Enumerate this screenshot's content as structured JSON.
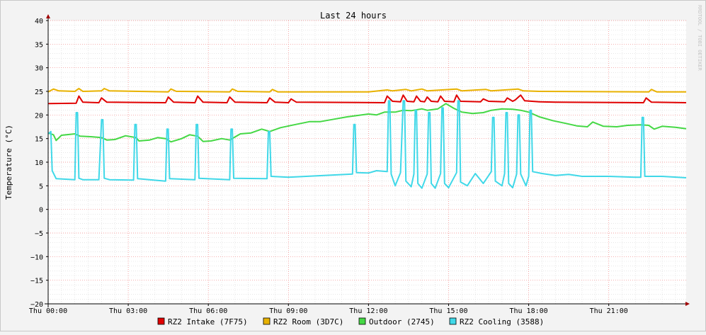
{
  "chart_data": {
    "type": "line",
    "title": "Last 24 hours",
    "ylabel": "Temperature (°C)",
    "xlabel": "",
    "watermark": "RRDTOOL / TOBI OETIKER",
    "ylim": [
      -20,
      40
    ],
    "yticks": [
      40,
      35,
      30,
      25,
      20,
      15,
      10,
      5,
      0,
      -5,
      -10,
      -15,
      -20
    ],
    "xlim_hours": [
      0,
      23.9
    ],
    "xticks": [
      {
        "hour": 0,
        "label": "Thu 00:00"
      },
      {
        "hour": 3,
        "label": "Thu 03:00"
      },
      {
        "hour": 6,
        "label": "Thu 06:00"
      },
      {
        "hour": 9,
        "label": "Thu 09:00"
      },
      {
        "hour": 12,
        "label": "Thu 12:00"
      },
      {
        "hour": 15,
        "label": "Thu 15:00"
      },
      {
        "hour": 18,
        "label": "Thu 18:00"
      },
      {
        "hour": 21,
        "label": "Thu 21:00"
      }
    ],
    "grid": true,
    "legend_position": "bottom",
    "series": [
      {
        "name": "RZ2 Intake (7F75)",
        "color": "#e00000",
        "points": [
          [
            0,
            22.4
          ],
          [
            1.05,
            22.5
          ],
          [
            1.15,
            24.0
          ],
          [
            1.3,
            22.7
          ],
          [
            1.9,
            22.6
          ],
          [
            2.0,
            23.6
          ],
          [
            2.2,
            22.7
          ],
          [
            4.4,
            22.6
          ],
          [
            4.5,
            23.8
          ],
          [
            4.7,
            22.7
          ],
          [
            5.5,
            22.6
          ],
          [
            5.6,
            24.0
          ],
          [
            5.8,
            22.7
          ],
          [
            6.7,
            22.6
          ],
          [
            6.8,
            23.8
          ],
          [
            7.0,
            22.7
          ],
          [
            8.2,
            22.6
          ],
          [
            8.3,
            23.6
          ],
          [
            8.5,
            22.7
          ],
          [
            9.0,
            22.6
          ],
          [
            9.1,
            23.4
          ],
          [
            9.3,
            22.7
          ],
          [
            12.6,
            22.6
          ],
          [
            12.7,
            24.0
          ],
          [
            12.9,
            22.9
          ],
          [
            13.2,
            22.8
          ],
          [
            13.3,
            24.2
          ],
          [
            13.45,
            22.9
          ],
          [
            13.7,
            22.8
          ],
          [
            13.8,
            24.0
          ],
          [
            13.95,
            22.9
          ],
          [
            14.1,
            22.8
          ],
          [
            14.2,
            23.8
          ],
          [
            14.35,
            22.9
          ],
          [
            14.6,
            22.8
          ],
          [
            14.7,
            24.0
          ],
          [
            14.85,
            22.9
          ],
          [
            15.2,
            22.8
          ],
          [
            15.3,
            24.2
          ],
          [
            15.45,
            22.9
          ],
          [
            16.2,
            22.8
          ],
          [
            16.3,
            23.4
          ],
          [
            16.5,
            22.9
          ],
          [
            17.1,
            22.8
          ],
          [
            17.2,
            23.6
          ],
          [
            17.4,
            22.9
          ],
          [
            17.5,
            23.2
          ],
          [
            17.7,
            24.2
          ],
          [
            17.85,
            23.0
          ],
          [
            18.4,
            22.8
          ],
          [
            19.0,
            22.7
          ],
          [
            22.3,
            22.6
          ],
          [
            22.4,
            23.6
          ],
          [
            22.6,
            22.7
          ],
          [
            23.9,
            22.6
          ]
        ]
      },
      {
        "name": "RZ2 Room (3D7C)",
        "color": "#e8b200",
        "points": [
          [
            0,
            24.9
          ],
          [
            0.2,
            25.5
          ],
          [
            0.4,
            25.1
          ],
          [
            1.0,
            25.0
          ],
          [
            1.15,
            25.6
          ],
          [
            1.3,
            25.0
          ],
          [
            2.0,
            25.1
          ],
          [
            2.1,
            25.6
          ],
          [
            2.3,
            25.1
          ],
          [
            4.5,
            24.9
          ],
          [
            4.6,
            25.5
          ],
          [
            4.8,
            25.0
          ],
          [
            6.8,
            24.9
          ],
          [
            6.9,
            25.5
          ],
          [
            7.1,
            25.0
          ],
          [
            8.3,
            24.9
          ],
          [
            8.4,
            25.4
          ],
          [
            8.6,
            24.9
          ],
          [
            12.0,
            24.9
          ],
          [
            12.7,
            25.3
          ],
          [
            12.9,
            25.1
          ],
          [
            13.4,
            25.4
          ],
          [
            13.6,
            25.1
          ],
          [
            14.0,
            25.5
          ],
          [
            14.2,
            25.1
          ],
          [
            15.3,
            25.5
          ],
          [
            15.5,
            25.1
          ],
          [
            16.4,
            25.4
          ],
          [
            16.6,
            25.1
          ],
          [
            17.6,
            25.5
          ],
          [
            17.8,
            25.1
          ],
          [
            18.4,
            25.0
          ],
          [
            22.5,
            24.9
          ],
          [
            22.6,
            25.4
          ],
          [
            22.8,
            24.9
          ],
          [
            23.9,
            24.9
          ]
        ]
      },
      {
        "name": "Outdoor (2745)",
        "color": "#45d845",
        "points": [
          [
            0,
            16.2
          ],
          [
            0.2,
            15.8
          ],
          [
            0.3,
            14.6
          ],
          [
            0.5,
            15.7
          ],
          [
            1.0,
            16.0
          ],
          [
            1.2,
            15.5
          ],
          [
            1.6,
            15.4
          ],
          [
            2.0,
            15.2
          ],
          [
            2.2,
            14.7
          ],
          [
            2.5,
            14.8
          ],
          [
            2.9,
            15.6
          ],
          [
            3.3,
            15.2
          ],
          [
            3.4,
            14.5
          ],
          [
            3.8,
            14.7
          ],
          [
            4.1,
            15.2
          ],
          [
            4.4,
            15.0
          ],
          [
            4.6,
            14.3
          ],
          [
            5.0,
            15.0
          ],
          [
            5.3,
            15.8
          ],
          [
            5.6,
            15.5
          ],
          [
            5.8,
            14.4
          ],
          [
            6.1,
            14.5
          ],
          [
            6.5,
            15.0
          ],
          [
            6.8,
            14.7
          ],
          [
            7.2,
            16.0
          ],
          [
            7.6,
            16.2
          ],
          [
            8.0,
            17.0
          ],
          [
            8.3,
            16.5
          ],
          [
            8.7,
            17.3
          ],
          [
            9.2,
            17.9
          ],
          [
            9.8,
            18.6
          ],
          [
            10.2,
            18.6
          ],
          [
            10.8,
            19.2
          ],
          [
            11.2,
            19.6
          ],
          [
            11.6,
            19.9
          ],
          [
            12.0,
            20.2
          ],
          [
            12.3,
            20.0
          ],
          [
            12.6,
            20.6
          ],
          [
            13.0,
            20.6
          ],
          [
            13.3,
            21.0
          ],
          [
            13.6,
            20.9
          ],
          [
            14.0,
            21.3
          ],
          [
            14.2,
            21.0
          ],
          [
            14.6,
            21.3
          ],
          [
            14.9,
            22.4
          ],
          [
            15.2,
            21.4
          ],
          [
            15.5,
            20.6
          ],
          [
            15.9,
            20.3
          ],
          [
            16.3,
            20.5
          ],
          [
            16.6,
            21.0
          ],
          [
            17.0,
            21.3
          ],
          [
            17.4,
            21.2
          ],
          [
            17.7,
            21.0
          ],
          [
            18.0,
            20.6
          ],
          [
            18.4,
            19.6
          ],
          [
            18.9,
            18.8
          ],
          [
            19.4,
            18.2
          ],
          [
            19.8,
            17.7
          ],
          [
            20.2,
            17.5
          ],
          [
            20.4,
            18.5
          ],
          [
            20.8,
            17.6
          ],
          [
            21.3,
            17.5
          ],
          [
            21.7,
            17.8
          ],
          [
            22.2,
            17.9
          ],
          [
            22.5,
            17.8
          ],
          [
            22.7,
            17.0
          ],
          [
            23.0,
            17.6
          ],
          [
            23.5,
            17.4
          ],
          [
            23.9,
            17.1
          ]
        ]
      },
      {
        "name": "RZ2 Cooling (3588)",
        "color": "#40d8e8",
        "points": [
          [
            0,
            16.0
          ],
          [
            0.1,
            16.5
          ],
          [
            0.15,
            8.2
          ],
          [
            0.3,
            6.5
          ],
          [
            1.0,
            6.3
          ],
          [
            1.05,
            20.5
          ],
          [
            1.1,
            20.5
          ],
          [
            1.15,
            6.6
          ],
          [
            1.3,
            6.3
          ],
          [
            1.9,
            6.3
          ],
          [
            2.0,
            19.0
          ],
          [
            2.05,
            19.0
          ],
          [
            2.1,
            6.6
          ],
          [
            2.3,
            6.3
          ],
          [
            3.2,
            6.2
          ],
          [
            3.25,
            18.0
          ],
          [
            3.3,
            18.0
          ],
          [
            3.35,
            6.5
          ],
          [
            4.4,
            6.0
          ],
          [
            4.45,
            17.0
          ],
          [
            4.5,
            17.0
          ],
          [
            4.55,
            6.5
          ],
          [
            5.5,
            6.3
          ],
          [
            5.55,
            18.0
          ],
          [
            5.6,
            18.0
          ],
          [
            5.65,
            6.6
          ],
          [
            6.8,
            6.3
          ],
          [
            6.85,
            17.0
          ],
          [
            6.9,
            17.0
          ],
          [
            6.95,
            6.6
          ],
          [
            8.2,
            6.5
          ],
          [
            8.25,
            16.5
          ],
          [
            8.3,
            16.5
          ],
          [
            8.35,
            7.0
          ],
          [
            9.0,
            6.8
          ],
          [
            11.4,
            7.5
          ],
          [
            11.45,
            18.0
          ],
          [
            11.5,
            18.0
          ],
          [
            11.55,
            7.8
          ],
          [
            12.0,
            7.7
          ],
          [
            12.3,
            8.2
          ],
          [
            12.7,
            8.0
          ],
          [
            12.75,
            23.0
          ],
          [
            12.8,
            23.0
          ],
          [
            12.85,
            7.5
          ],
          [
            13.0,
            5.0
          ],
          [
            13.2,
            7.8
          ],
          [
            13.3,
            23.0
          ],
          [
            13.35,
            23.0
          ],
          [
            13.4,
            6.0
          ],
          [
            13.6,
            4.8
          ],
          [
            13.7,
            7.5
          ],
          [
            13.75,
            21.0
          ],
          [
            13.8,
            21.0
          ],
          [
            13.85,
            5.5
          ],
          [
            14.0,
            4.5
          ],
          [
            14.2,
            7.5
          ],
          [
            14.25,
            20.5
          ],
          [
            14.3,
            20.5
          ],
          [
            14.35,
            5.5
          ],
          [
            14.5,
            4.5
          ],
          [
            14.7,
            7.6
          ],
          [
            14.75,
            21.5
          ],
          [
            14.8,
            21.5
          ],
          [
            14.85,
            5.5
          ],
          [
            15.0,
            4.6
          ],
          [
            15.3,
            7.8
          ],
          [
            15.35,
            23.0
          ],
          [
            15.4,
            23.0
          ],
          [
            15.45,
            5.8
          ],
          [
            15.7,
            5.0
          ],
          [
            16.0,
            7.6
          ],
          [
            16.3,
            5.5
          ],
          [
            16.6,
            8.0
          ],
          [
            16.65,
            19.5
          ],
          [
            16.7,
            19.5
          ],
          [
            16.75,
            6.0
          ],
          [
            17.0,
            5.0
          ],
          [
            17.1,
            7.6
          ],
          [
            17.15,
            20.5
          ],
          [
            17.2,
            20.5
          ],
          [
            17.25,
            5.5
          ],
          [
            17.4,
            4.6
          ],
          [
            17.55,
            7.5
          ],
          [
            17.6,
            20.0
          ],
          [
            17.65,
            20.0
          ],
          [
            17.7,
            7.5
          ],
          [
            17.9,
            5.0
          ],
          [
            18.0,
            7.0
          ],
          [
            18.05,
            21.0
          ],
          [
            18.1,
            21.0
          ],
          [
            18.15,
            8.0
          ],
          [
            18.5,
            7.6
          ],
          [
            19.0,
            7.2
          ],
          [
            19.5,
            7.4
          ],
          [
            20.0,
            7.0
          ],
          [
            21.0,
            7.0
          ],
          [
            22.0,
            6.8
          ],
          [
            22.2,
            6.8
          ],
          [
            22.25,
            19.5
          ],
          [
            22.3,
            19.5
          ],
          [
            22.35,
            7.0
          ],
          [
            23.0,
            7.0
          ],
          [
            23.9,
            6.7
          ]
        ]
      }
    ]
  }
}
